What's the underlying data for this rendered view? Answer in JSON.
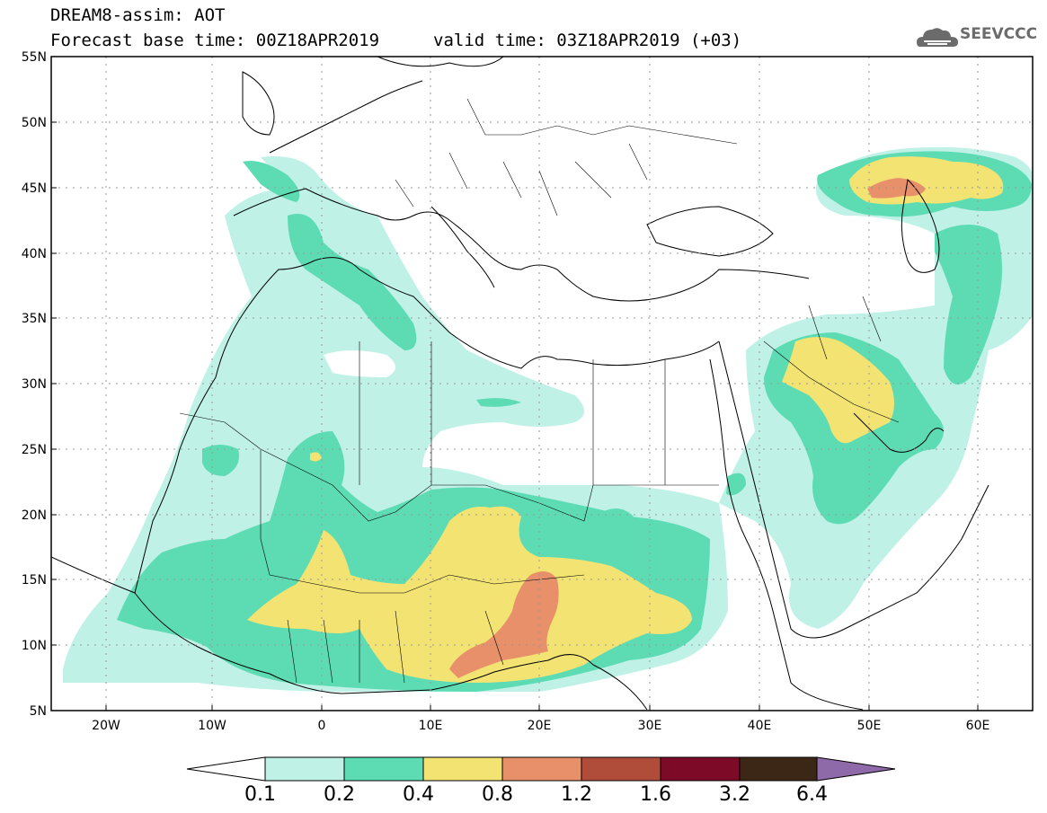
{
  "header": {
    "title": "DREAM8-assim: AOT",
    "forecast_base": "Forecast base time: 00Z18APR2019",
    "valid_time": "valid time: 03Z18APR2019 (+03)"
  },
  "logo": {
    "text": "SEEVCCC",
    "icon": "cloud-logo-icon"
  },
  "map": {
    "lat_labels": [
      "55N",
      "50N",
      "45N",
      "40N",
      "35N",
      "30N",
      "25N",
      "20N",
      "15N",
      "10N",
      "5N"
    ],
    "lon_labels": [
      "20W",
      "10W",
      "0",
      "10E",
      "20E",
      "30E",
      "40E",
      "50E",
      "60E"
    ],
    "extent": {
      "lon": [
        -25,
        65
      ],
      "lat": [
        5,
        55
      ]
    }
  },
  "colorbar": {
    "labels": [
      "0.1",
      "0.2",
      "0.4",
      "0.8",
      "1.2",
      "1.6",
      "3.2",
      "6.4"
    ],
    "colors": [
      "#bff1e6",
      "#5ddcb3",
      "#f2e373",
      "#e8906a",
      "#b04c3a",
      "#7d0a27",
      "#3c2717",
      "#8e6aa8"
    ]
  }
}
